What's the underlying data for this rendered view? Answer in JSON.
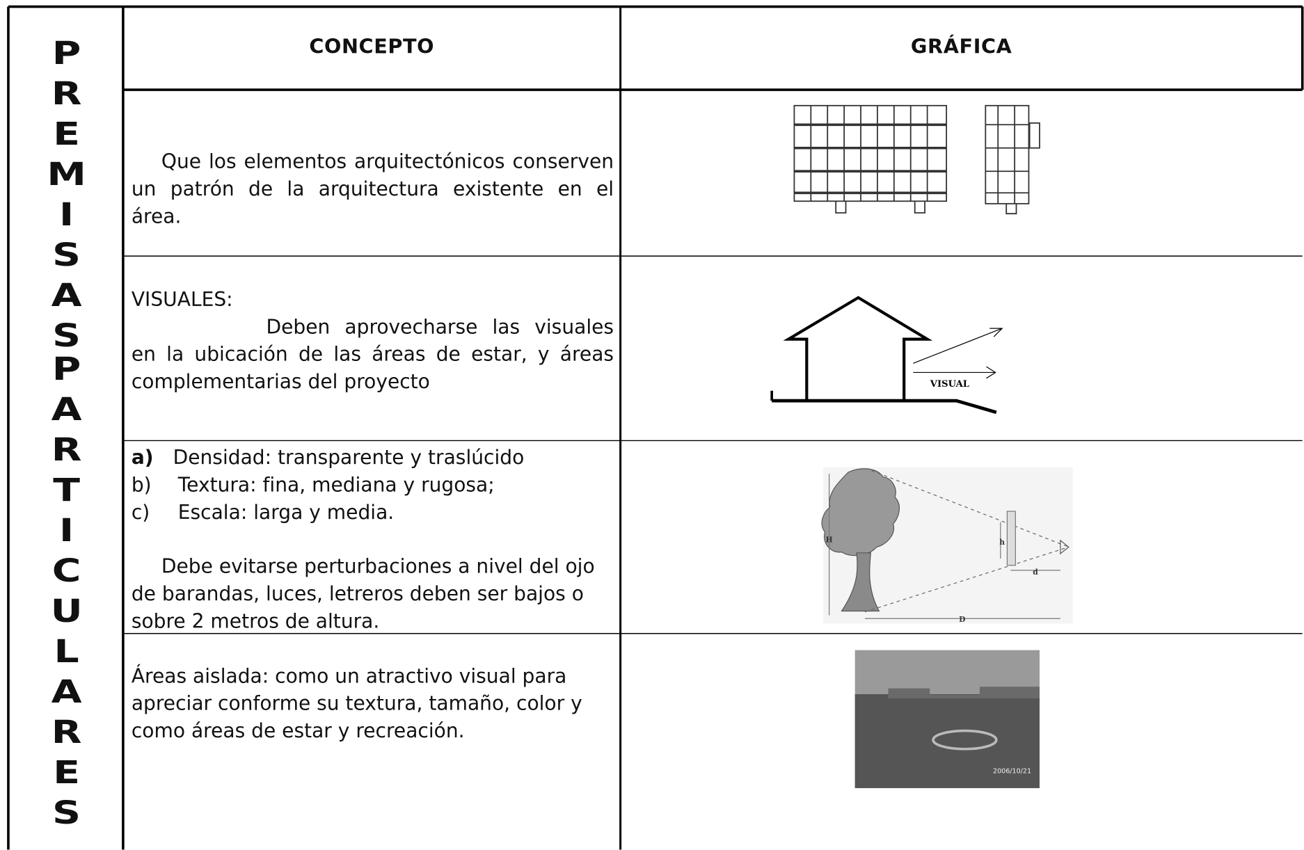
{
  "side_title": [
    "PREMISAS",
    "PARTICULARES"
  ],
  "table": {
    "headers": [
      "CONCEPTO",
      "GRÁFICA"
    ],
    "rows": [
      {
        "text": "Que los elementos arquitectónicos conserven un patrón de la arquitectura existente en el área."
      },
      {
        "heading": "VISUALES:",
        "text": "Deben aprovecharse las visuales en la ubicación de las áreas de estar, y áreas complementarias del proyecto",
        "figure_label": "VISUAL"
      },
      {
        "items": [
          {
            "marker": "a)",
            "text": "Densidad: transparente y traslúcido"
          },
          {
            "marker": "b)",
            "text": "Textura: fina, mediana y rugosa;"
          },
          {
            "marker": "c)",
            "text": "Escala: larga y media."
          }
        ],
        "text": "Debe evitarse perturbaciones a nivel del ojo de barandas, luces, letreros deben ser bajos o sobre 2 metros de altura.",
        "figure_labels": [
          "H",
          "h",
          "d",
          "D"
        ]
      },
      {
        "text": "Áreas aislada: como un atractivo visual para apreciar conforme su textura, tamaño, color y como áreas de estar y recreación.",
        "photo_date": "2006/10/21"
      }
    ]
  }
}
